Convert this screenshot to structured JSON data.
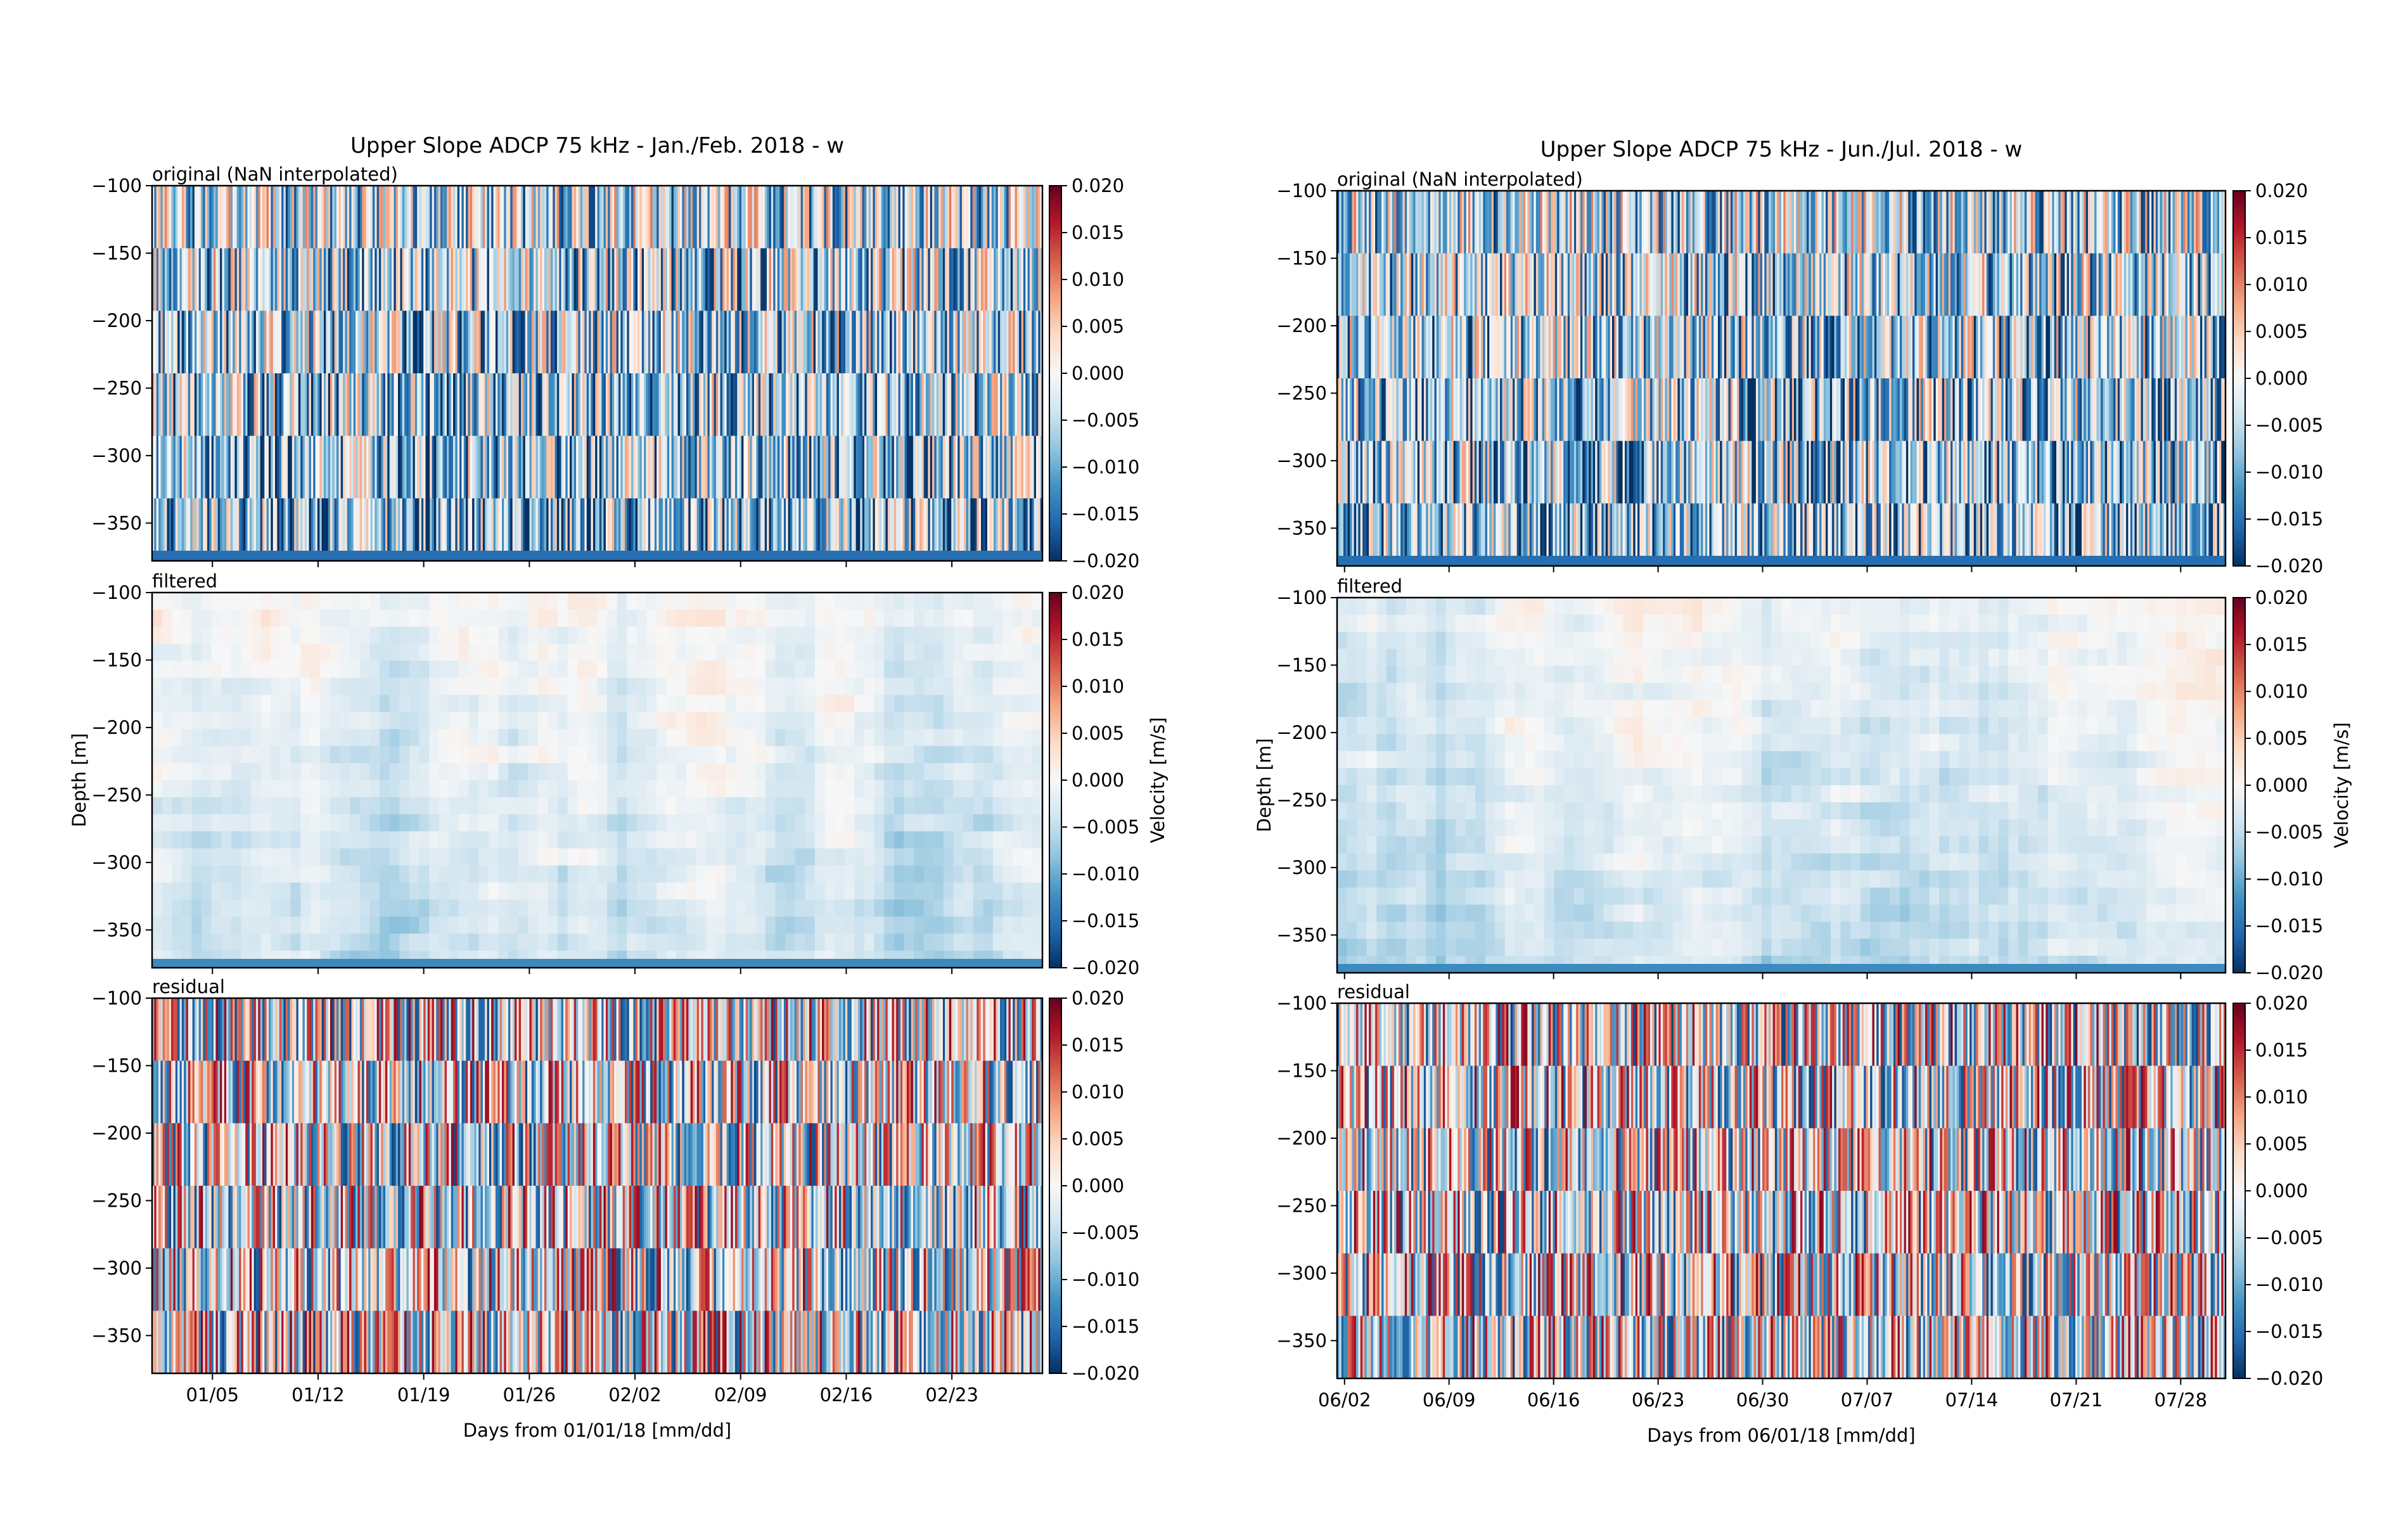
{
  "colors": {
    "colormap": [
      "#053061",
      "#2166ac",
      "#4393c3",
      "#92c5de",
      "#d1e5f0",
      "#f7f7f7",
      "#fddbc7",
      "#f4a582",
      "#d6604d",
      "#b2182b",
      "#67001f"
    ],
    "axis": "#000000",
    "background": "#ffffff"
  },
  "chart_data": [
    {
      "type": "heatmap",
      "title": "Upper Slope ADCP 75 kHz - Jan./Feb. 2018 - w",
      "xlabel": "Days from 01/01/18 [mm/dd]",
      "ylabel": "Depth [m]",
      "colorbar_label": "Velocity [m/s]",
      "panels": [
        "original (NaN interpolated)",
        "filtered",
        "residual"
      ],
      "xlim": [
        1,
        60
      ],
      "x_ticks": [
        5,
        12,
        19,
        26,
        33,
        40,
        47,
        54
      ],
      "x_tick_labels": [
        "01/05",
        "01/12",
        "01/19",
        "01/26",
        "02/02",
        "02/09",
        "02/16",
        "02/23"
      ],
      "ylim": [
        -378,
        -100
      ],
      "y_ticks": [
        -100,
        -150,
        -200,
        -250,
        -300,
        -350
      ],
      "y_tick_labels": [
        "−100",
        "−150",
        "−200",
        "−250",
        "−300",
        "−350"
      ],
      "clim": [
        -0.02,
        0.02
      ],
      "colorbar_ticks": [
        0.02,
        0.015,
        0.01,
        0.005,
        0.0,
        -0.005,
        -0.01,
        -0.015,
        -0.02
      ],
      "colorbar_tick_labels": [
        "0.020",
        "0.015",
        "0.010",
        "0.005",
        "0.000",
        "−0.005",
        "−0.010",
        "−0.015",
        "−0.020"
      ],
      "colormap": "RdBu_r"
    },
    {
      "type": "heatmap",
      "title": "Upper Slope ADCP 75 kHz - Jun./Jul. 2018 - w",
      "xlabel": "Days from 06/01/18 [mm/dd]",
      "ylabel": "Depth [m]",
      "colorbar_label": "Velocity [m/s]",
      "panels": [
        "original (NaN interpolated)",
        "filtered",
        "residual"
      ],
      "xlim": [
        1.5,
        61
      ],
      "x_ticks": [
        2,
        9,
        16,
        23,
        30,
        37,
        44,
        51,
        58
      ],
      "x_tick_labels": [
        "06/02",
        "06/09",
        "06/16",
        "06/23",
        "06/30",
        "07/07",
        "07/14",
        "07/21",
        "07/28"
      ],
      "ylim": [
        -378,
        -100
      ],
      "y_ticks": [
        -100,
        -150,
        -200,
        -250,
        -300,
        -350
      ],
      "y_tick_labels": [
        "−100",
        "−150",
        "−200",
        "−250",
        "−300",
        "−350"
      ],
      "clim": [
        -0.02,
        0.02
      ],
      "colorbar_ticks": [
        0.02,
        0.015,
        0.01,
        0.005,
        0.0,
        -0.005,
        -0.01,
        -0.015,
        -0.02
      ],
      "colorbar_tick_labels": [
        "0.020",
        "0.015",
        "0.010",
        "0.005",
        "0.000",
        "−0.005",
        "−0.010",
        "−0.015",
        "−0.020"
      ],
      "colormap": "RdBu_r"
    }
  ]
}
